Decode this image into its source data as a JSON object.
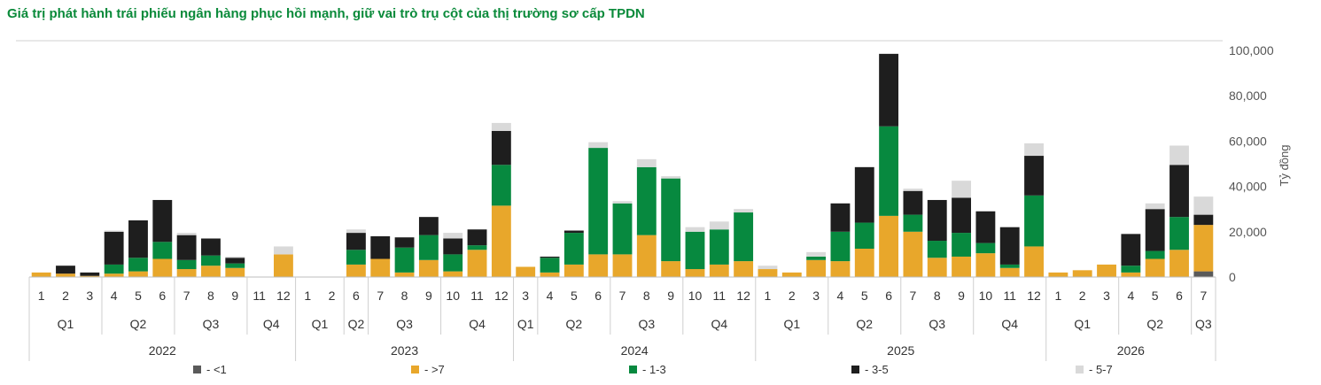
{
  "title": "Giá trị phát hành trái phiếu ngân hàng phục hồi mạnh, giữ vai trò trụ cột của thị trường sơ cấp TPDN",
  "chart_data": {
    "type": "bar",
    "stacked": true,
    "ylabel": "Tỷ đồng",
    "ylim": [
      0,
      100000
    ],
    "yticks": [
      "0",
      "20,000",
      "40,000",
      "60,000",
      "80,000",
      "100,000"
    ],
    "yaxis_position": "right",
    "legend_position": "bottom",
    "series": [
      {
        "name": "- <1",
        "color": "#5a5a5a"
      },
      {
        "name": "- >7",
        "color": "#e8a72b"
      },
      {
        "name": "- 1-3",
        "color": "#07893f"
      },
      {
        "name": "- 3-5",
        "color": "#1e1e1e"
      },
      {
        "name": "- 5-7",
        "color": "#d9d9d9"
      }
    ],
    "years": [
      {
        "year": "2022",
        "quarters": [
          {
            "q": "Q1",
            "months": [
              {
                "m": "1",
                "v": [
                  0,
                  2000,
                  0,
                  0,
                  0
                ]
              },
              {
                "m": "2",
                "v": [
                  0,
                  1500,
                  0,
                  3500,
                  0
                ]
              },
              {
                "m": "3",
                "v": [
                  0,
                  500,
                  0,
                  1500,
                  0
                ]
              }
            ]
          },
          {
            "q": "Q2",
            "months": [
              {
                "m": "4",
                "v": [
                  0,
                  1500,
                  4000,
                  14500,
                  500
                ]
              },
              {
                "m": "5",
                "v": [
                  0,
                  2500,
                  6000,
                  16500,
                  0
                ]
              },
              {
                "m": "6",
                "v": [
                  0,
                  8000,
                  7500,
                  18500,
                  0
                ]
              }
            ]
          },
          {
            "q": "Q3",
            "months": [
              {
                "m": "7",
                "v": [
                  0,
                  3500,
                  4000,
                  11000,
                  1000
                ]
              },
              {
                "m": "8",
                "v": [
                  0,
                  5000,
                  4500,
                  7500,
                  0
                ]
              },
              {
                "m": "9",
                "v": [
                  0,
                  4000,
                  2000,
                  2500,
                  500
                ]
              }
            ]
          },
          {
            "q": "Q4",
            "months": [
              {
                "m": "11",
                "v": [
                  0,
                  0,
                  0,
                  0,
                  0
                ]
              },
              {
                "m": "12",
                "v": [
                  0,
                  10000,
                  0,
                  0,
                  3500
                ]
              }
            ]
          }
        ]
      },
      {
        "year": "2023",
        "quarters": [
          {
            "q": "Q1",
            "months": [
              {
                "m": "1",
                "v": [
                  0,
                  0,
                  0,
                  0,
                  200
                ]
              },
              {
                "m": "2",
                "v": [
                  0,
                  0,
                  0,
                  0,
                  0
                ]
              }
            ]
          },
          {
            "q": "Q2",
            "months": [
              {
                "m": "6",
                "v": [
                  0,
                  5500,
                  6500,
                  7500,
                  1500
                ]
              }
            ]
          },
          {
            "q": "Q3",
            "months": [
              {
                "m": "7",
                "v": [
                  0,
                  8000,
                  0,
                  10000,
                  0
                ]
              },
              {
                "m": "8",
                "v": [
                  0,
                  2000,
                  11000,
                  4500,
                  0
                ]
              },
              {
                "m": "9",
                "v": [
                  0,
                  7500,
                  11000,
                  8000,
                  0
                ]
              }
            ]
          },
          {
            "q": "Q4",
            "months": [
              {
                "m": "10",
                "v": [
                  0,
                  2500,
                  7500,
                  7000,
                  2500
                ]
              },
              {
                "m": "11",
                "v": [
                  0,
                  12000,
                  2000,
                  7000,
                  0
                ]
              },
              {
                "m": "12",
                "v": [
                  0,
                  31500,
                  18000,
                  15000,
                  3500
                ]
              }
            ]
          }
        ]
      },
      {
        "year": "2024",
        "quarters": [
          {
            "q": "Q1",
            "months": [
              {
                "m": "3",
                "v": [
                  0,
                  4500,
                  0,
                  0,
                  0
                ]
              }
            ]
          },
          {
            "q": "Q2",
            "months": [
              {
                "m": "4",
                "v": [
                  0,
                  2000,
                  6500,
                  500,
                  0
                ]
              },
              {
                "m": "5",
                "v": [
                  0,
                  5500,
                  14000,
                  1000,
                  0
                ]
              },
              {
                "m": "6",
                "v": [
                  0,
                  10000,
                  47000,
                  0,
                  2500
                ]
              }
            ]
          },
          {
            "q": "Q3",
            "months": [
              {
                "m": "7",
                "v": [
                  0,
                  10000,
                  22500,
                  0,
                  1000
                ]
              },
              {
                "m": "8",
                "v": [
                  0,
                  18500,
                  30000,
                  0,
                  3500
                ]
              },
              {
                "m": "9",
                "v": [
                  0,
                  7000,
                  36500,
                  0,
                  1000
                ]
              }
            ]
          },
          {
            "q": "Q4",
            "months": [
              {
                "m": "10",
                "v": [
                  0,
                  3500,
                  16500,
                  0,
                  2000
                ]
              },
              {
                "m": "11",
                "v": [
                  0,
                  5500,
                  15500,
                  0,
                  3500
                ]
              },
              {
                "m": "12",
                "v": [
                  0,
                  7000,
                  21500,
                  0,
                  1500
                ]
              }
            ]
          }
        ]
      },
      {
        "year": "2025",
        "quarters": [
          {
            "q": "Q1",
            "months": [
              {
                "m": "1",
                "v": [
                  0,
                  3500,
                  0,
                  0,
                  1500
                ]
              },
              {
                "m": "2",
                "v": [
                  0,
                  2000,
                  0,
                  0,
                  0
                ]
              },
              {
                "m": "3",
                "v": [
                  0,
                  7500,
                  1500,
                  0,
                  2000
                ]
              }
            ]
          },
          {
            "q": "Q2",
            "months": [
              {
                "m": "4",
                "v": [
                  0,
                  7000,
                  13000,
                  12500,
                  0
                ]
              },
              {
                "m": "5",
                "v": [
                  0,
                  12500,
                  11500,
                  24500,
                  0
                ]
              },
              {
                "m": "6",
                "v": [
                  0,
                  27000,
                  39500,
                  32000,
                  0
                ]
              }
            ]
          },
          {
            "q": "Q3",
            "months": [
              {
                "m": "7",
                "v": [
                  0,
                  20000,
                  7500,
                  10500,
                  1000
                ]
              },
              {
                "m": "8",
                "v": [
                  0,
                  8500,
                  7500,
                  18000,
                  0
                ]
              },
              {
                "m": "9",
                "v": [
                  0,
                  9000,
                  10500,
                  15500,
                  7500
                ]
              }
            ]
          },
          {
            "q": "Q4",
            "months": [
              {
                "m": "10",
                "v": [
                  0,
                  10500,
                  4500,
                  14000,
                  0
                ]
              },
              {
                "m": "11",
                "v": [
                  0,
                  4000,
                  1500,
                  16500,
                  0
                ]
              },
              {
                "m": "12",
                "v": [
                  0,
                  13500,
                  22500,
                  17500,
                  5500
                ]
              }
            ]
          }
        ]
      },
      {
        "year": "2026",
        "quarters": [
          {
            "q": "Q1",
            "months": [
              {
                "m": "1",
                "v": [
                  0,
                  2000,
                  0,
                  0,
                  0
                ]
              },
              {
                "m": "2",
                "v": [
                  0,
                  3000,
                  0,
                  0,
                  0
                ]
              },
              {
                "m": "3",
                "v": [
                  0,
                  5500,
                  0,
                  0,
                  0
                ]
              }
            ]
          },
          {
            "q": "Q2",
            "months": [
              {
                "m": "4",
                "v": [
                  0,
                  2000,
                  3000,
                  14000,
                  0
                ]
              },
              {
                "m": "5",
                "v": [
                  0,
                  8000,
                  3500,
                  18500,
                  2500
                ]
              },
              {
                "m": "6",
                "v": [
                  0,
                  12000,
                  14500,
                  23000,
                  8500
                ]
              }
            ]
          },
          {
            "q": "Q3",
            "months": [
              {
                "m": "7",
                "v": [
                  2500,
                  20500,
                  0,
                  4500,
                  8000
                ]
              }
            ]
          }
        ]
      }
    ]
  }
}
